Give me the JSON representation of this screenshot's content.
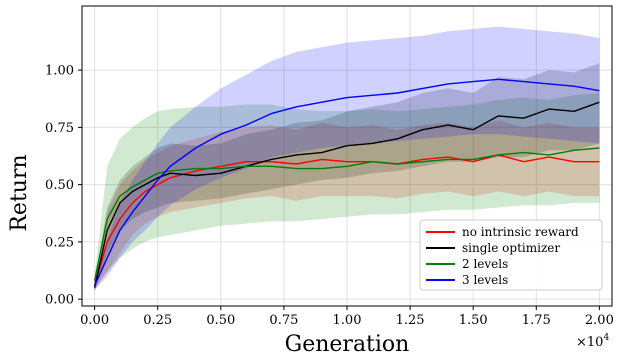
{
  "chart_data": {
    "type": "line",
    "title": "",
    "xlabel": "Generation",
    "ylabel": "Return",
    "x_multiplier_label": "×10",
    "x_multiplier_exp": "4",
    "xlim": [
      -0.05,
      2.05
    ],
    "ylim": [
      -0.03,
      1.28
    ],
    "xticks": [
      "0.00",
      "0.25",
      "0.50",
      "0.75",
      "1.00",
      "1.25",
      "1.50",
      "1.75",
      "2.00"
    ],
    "yticks": [
      "0.00",
      "0.25",
      "0.50",
      "0.75",
      "1.00"
    ],
    "grid": true,
    "legend_position": "lower-right",
    "series": [
      {
        "name": "no intrinsic reward",
        "color": "#ff0000",
        "x": [
          0,
          0.05,
          0.1,
          0.15,
          0.2,
          0.25,
          0.3,
          0.4,
          0.5,
          0.6,
          0.7,
          0.8,
          0.9,
          1.0,
          1.1,
          1.2,
          1.3,
          1.4,
          1.5,
          1.6,
          1.7,
          1.8,
          1.9,
          2.0
        ],
        "mean": [
          0.06,
          0.25,
          0.35,
          0.42,
          0.47,
          0.5,
          0.53,
          0.56,
          0.58,
          0.6,
          0.6,
          0.59,
          0.61,
          0.6,
          0.6,
          0.59,
          0.61,
          0.62,
          0.6,
          0.63,
          0.6,
          0.62,
          0.6,
          0.6
        ],
        "lower": [
          0.04,
          0.12,
          0.2,
          0.28,
          0.33,
          0.36,
          0.38,
          0.4,
          0.42,
          0.44,
          0.45,
          0.43,
          0.45,
          0.45,
          0.45,
          0.44,
          0.46,
          0.47,
          0.45,
          0.47,
          0.45,
          0.47,
          0.45,
          0.45
        ],
        "upper": [
          0.08,
          0.38,
          0.5,
          0.56,
          0.61,
          0.64,
          0.67,
          0.7,
          0.73,
          0.75,
          0.76,
          0.74,
          0.77,
          0.75,
          0.76,
          0.74,
          0.76,
          0.77,
          0.75,
          0.78,
          0.75,
          0.77,
          0.75,
          0.75
        ]
      },
      {
        "name": "single optimizer",
        "color": "#000000",
        "x": [
          0,
          0.05,
          0.1,
          0.15,
          0.2,
          0.25,
          0.3,
          0.4,
          0.5,
          0.6,
          0.7,
          0.8,
          0.9,
          1.0,
          1.1,
          1.2,
          1.3,
          1.4,
          1.5,
          1.6,
          1.7,
          1.8,
          1.9,
          2.0
        ],
        "mean": [
          0.05,
          0.3,
          0.42,
          0.47,
          0.5,
          0.53,
          0.55,
          0.54,
          0.55,
          0.58,
          0.61,
          0.63,
          0.64,
          0.67,
          0.68,
          0.7,
          0.74,
          0.76,
          0.74,
          0.8,
          0.79,
          0.83,
          0.82,
          0.86
        ],
        "lower": [
          0.03,
          0.2,
          0.3,
          0.35,
          0.38,
          0.4,
          0.42,
          0.43,
          0.44,
          0.46,
          0.48,
          0.5,
          0.52,
          0.53,
          0.55,
          0.56,
          0.58,
          0.6,
          0.6,
          0.62,
          0.62,
          0.65,
          0.65,
          0.68
        ],
        "upper": [
          0.07,
          0.4,
          0.52,
          0.58,
          0.62,
          0.66,
          0.68,
          0.67,
          0.68,
          0.72,
          0.74,
          0.77,
          0.78,
          0.82,
          0.84,
          0.86,
          0.9,
          0.92,
          0.9,
          0.97,
          0.96,
          1.0,
          0.99,
          1.03
        ]
      },
      {
        "name": "2 levels",
        "color": "#008000",
        "x": [
          0,
          0.05,
          0.1,
          0.15,
          0.2,
          0.25,
          0.3,
          0.4,
          0.5,
          0.6,
          0.7,
          0.8,
          0.9,
          1.0,
          1.1,
          1.2,
          1.3,
          1.4,
          1.5,
          1.6,
          1.7,
          1.8,
          1.9,
          2.0
        ],
        "mean": [
          0.08,
          0.35,
          0.45,
          0.49,
          0.52,
          0.55,
          0.56,
          0.57,
          0.57,
          0.58,
          0.58,
          0.57,
          0.57,
          0.58,
          0.6,
          0.59,
          0.6,
          0.61,
          0.61,
          0.63,
          0.64,
          0.63,
          0.65,
          0.66
        ],
        "lower": [
          0.05,
          0.12,
          0.18,
          0.22,
          0.25,
          0.27,
          0.28,
          0.3,
          0.32,
          0.33,
          0.34,
          0.34,
          0.35,
          0.36,
          0.37,
          0.37,
          0.38,
          0.39,
          0.39,
          0.4,
          0.41,
          0.41,
          0.42,
          0.42
        ],
        "upper": [
          0.1,
          0.58,
          0.7,
          0.75,
          0.79,
          0.82,
          0.83,
          0.84,
          0.84,
          0.85,
          0.85,
          0.83,
          0.82,
          0.82,
          0.83,
          0.82,
          0.83,
          0.84,
          0.85,
          0.87,
          0.88,
          0.87,
          0.89,
          0.9
        ]
      },
      {
        "name": "3 levels",
        "color": "#0000ff",
        "x": [
          0,
          0.05,
          0.1,
          0.15,
          0.2,
          0.25,
          0.3,
          0.4,
          0.5,
          0.6,
          0.7,
          0.8,
          0.9,
          1.0,
          1.1,
          1.2,
          1.3,
          1.4,
          1.5,
          1.6,
          1.7,
          1.8,
          1.9,
          2.0
        ],
        "mean": [
          0.06,
          0.18,
          0.3,
          0.38,
          0.45,
          0.52,
          0.58,
          0.66,
          0.72,
          0.76,
          0.81,
          0.84,
          0.86,
          0.88,
          0.89,
          0.9,
          0.92,
          0.94,
          0.95,
          0.96,
          0.95,
          0.94,
          0.93,
          0.91
        ],
        "lower": [
          0.04,
          0.1,
          0.18,
          0.25,
          0.3,
          0.36,
          0.41,
          0.48,
          0.53,
          0.57,
          0.62,
          0.64,
          0.66,
          0.67,
          0.68,
          0.69,
          0.7,
          0.71,
          0.72,
          0.72,
          0.71,
          0.7,
          0.69,
          0.68
        ],
        "upper": [
          0.08,
          0.26,
          0.42,
          0.52,
          0.6,
          0.68,
          0.75,
          0.84,
          0.92,
          0.98,
          1.04,
          1.08,
          1.1,
          1.12,
          1.13,
          1.14,
          1.15,
          1.17,
          1.18,
          1.19,
          1.18,
          1.17,
          1.16,
          1.14
        ]
      }
    ]
  }
}
